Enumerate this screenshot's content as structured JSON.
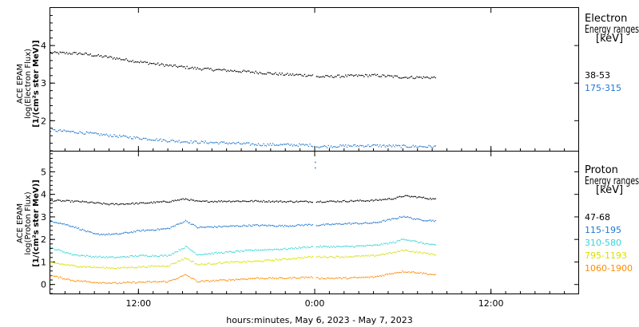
{
  "chart_data": {
    "type": "scatter",
    "x_axis": {
      "label": "hours:minutes, May  6, 2023 - May  7, 2023",
      "range_hours": [
        0,
        36
      ],
      "ticks": [
        {
          "hour": 6,
          "label": "12:00"
        },
        {
          "hour": 18,
          "label": "0:00"
        },
        {
          "hour": 30,
          "label": "12:00"
        }
      ],
      "data_end_hour": 26.2,
      "gap_hours": [
        17.9,
        18.0
      ]
    },
    "panels": [
      {
        "id": "electron",
        "ylabel_lines": [
          "ACE EPAM",
          "log(Electron Flux)",
          "[1/(cm²s ster MeV)]"
        ],
        "ylim": [
          1.2,
          5.0
        ],
        "yticks": [
          2,
          3,
          4
        ],
        "legend_title": "Electron",
        "legend_subtitle": "Energy ranges",
        "legend_unit": "[keV]",
        "series": [
          {
            "name": "38-53",
            "color": "#000000",
            "points": [
              [
                0,
                3.82
              ],
              [
                2,
                3.8
              ],
              [
                4,
                3.7
              ],
              [
                6,
                3.58
              ],
              [
                8,
                3.48
              ],
              [
                10,
                3.4
              ],
              [
                12,
                3.35
              ],
              [
                14,
                3.3
              ],
              [
                16,
                3.24
              ],
              [
                17.8,
                3.22
              ],
              [
                18.1,
                3.18
              ],
              [
                20,
                3.2
              ],
              [
                22,
                3.22
              ],
              [
                24,
                3.17
              ],
              [
                26.2,
                3.16
              ]
            ]
          },
          {
            "name": "175-315",
            "color": "#1f77d0",
            "points": [
              [
                0,
                1.76
              ],
              [
                2,
                1.7
              ],
              [
                4,
                1.62
              ],
              [
                6,
                1.55
              ],
              [
                8,
                1.48
              ],
              [
                10,
                1.44
              ],
              [
                12,
                1.42
              ],
              [
                14,
                1.38
              ],
              [
                16,
                1.37
              ],
              [
                17.8,
                1.36
              ],
              [
                18.1,
                1.32
              ],
              [
                20,
                1.34
              ],
              [
                22,
                1.35
              ],
              [
                24,
                1.33
              ],
              [
                26.2,
                1.32
              ]
            ]
          }
        ]
      },
      {
        "id": "proton",
        "ylabel_lines": [
          "ACE EPAM",
          "log(Proton Flux)",
          "[1/(cm²s ster MeV)]"
        ],
        "ylim": [
          -0.4,
          5.9
        ],
        "yticks": [
          0,
          1,
          2,
          3,
          4,
          5
        ],
        "legend_title": "Proton",
        "legend_subtitle": "Energy ranges",
        "legend_unit": "[keV]",
        "series": [
          {
            "name": "47-68",
            "color": "#000000",
            "points": [
              [
                0,
                3.75
              ],
              [
                2,
                3.7
              ],
              [
                4,
                3.58
              ],
              [
                6,
                3.62
              ],
              [
                8,
                3.7
              ],
              [
                9.2,
                3.82
              ],
              [
                10,
                3.7
              ],
              [
                12,
                3.72
              ],
              [
                14,
                3.72
              ],
              [
                16,
                3.7
              ],
              [
                17.8,
                3.7
              ],
              [
                18.1,
                3.7
              ],
              [
                20,
                3.72
              ],
              [
                22,
                3.75
              ],
              [
                23.5,
                3.85
              ],
              [
                24,
                3.95
              ],
              [
                25,
                3.9
              ],
              [
                26.2,
                3.8
              ]
            ]
          },
          {
            "name": "115-195",
            "color": "#1f77d0",
            "points": [
              [
                0,
                2.85
              ],
              [
                1.5,
                2.6
              ],
              [
                3,
                2.25
              ],
              [
                4.5,
                2.25
              ],
              [
                6,
                2.4
              ],
              [
                8,
                2.5
              ],
              [
                9.2,
                2.85
              ],
              [
                10,
                2.55
              ],
              [
                12,
                2.6
              ],
              [
                14,
                2.65
              ],
              [
                16,
                2.62
              ],
              [
                17.8,
                2.68
              ],
              [
                18.1,
                2.65
              ],
              [
                20,
                2.72
              ],
              [
                22,
                2.75
              ],
              [
                23.5,
                2.95
              ],
              [
                24,
                3.05
              ],
              [
                25,
                2.9
              ],
              [
                26.2,
                2.85
              ]
            ]
          },
          {
            "name": "310-580",
            "color": "#33d6d6",
            "points": [
              [
                0,
                1.65
              ],
              [
                1.5,
                1.35
              ],
              [
                3,
                1.25
              ],
              [
                4.5,
                1.22
              ],
              [
                6,
                1.3
              ],
              [
                8,
                1.3
              ],
              [
                9.2,
                1.7
              ],
              [
                10,
                1.35
              ],
              [
                12,
                1.45
              ],
              [
                14,
                1.55
              ],
              [
                16,
                1.6
              ],
              [
                17.8,
                1.7
              ],
              [
                18.1,
                1.7
              ],
              [
                20,
                1.7
              ],
              [
                22,
                1.75
              ],
              [
                23.5,
                1.9
              ],
              [
                24,
                2.05
              ],
              [
                25,
                1.9
              ],
              [
                26.2,
                1.75
              ]
            ]
          },
          {
            "name": "795-1193",
            "color": "#d7e000",
            "points": [
              [
                0,
                1.0
              ],
              [
                1.5,
                0.85
              ],
              [
                3,
                0.78
              ],
              [
                4.5,
                0.75
              ],
              [
                6,
                0.8
              ],
              [
                8,
                0.85
              ],
              [
                9.2,
                1.2
              ],
              [
                10,
                0.9
              ],
              [
                12,
                1.0
              ],
              [
                14,
                1.05
              ],
              [
                16,
                1.15
              ],
              [
                17.8,
                1.25
              ],
              [
                18.1,
                1.25
              ],
              [
                20,
                1.25
              ],
              [
                22,
                1.3
              ],
              [
                23.5,
                1.45
              ],
              [
                24,
                1.55
              ],
              [
                25,
                1.45
              ],
              [
                26.2,
                1.35
              ]
            ]
          },
          {
            "name": "1060-1900",
            "color": "#ff8c00",
            "points": [
              [
                0,
                0.42
              ],
              [
                1.5,
                0.2
              ],
              [
                3,
                0.12
              ],
              [
                4.5,
                0.08
              ],
              [
                6,
                0.12
              ],
              [
                8,
                0.15
              ],
              [
                9.2,
                0.45
              ],
              [
                10,
                0.15
              ],
              [
                12,
                0.22
              ],
              [
                14,
                0.3
              ],
              [
                16,
                0.3
              ],
              [
                17.8,
                0.35
              ],
              [
                18.1,
                0.3
              ],
              [
                20,
                0.3
              ],
              [
                22,
                0.35
              ],
              [
                23.5,
                0.55
              ],
              [
                24,
                0.6
              ],
              [
                25,
                0.55
              ],
              [
                26.2,
                0.45
              ]
            ]
          }
        ],
        "spike": {
          "hour": 18.0,
          "values": [
            5.2,
            5.45
          ]
        }
      }
    ]
  }
}
